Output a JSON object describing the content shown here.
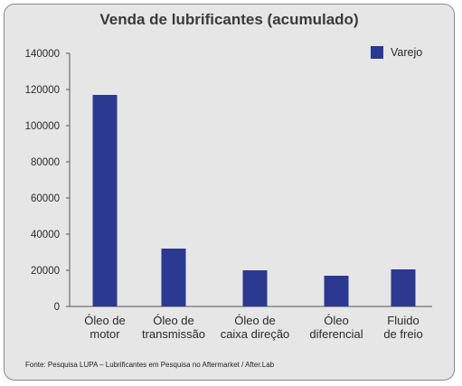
{
  "chart_data": {
    "type": "bar",
    "title": "Venda de lubrificantes (acumulado)",
    "categories": [
      [
        "Óleo de",
        "motor"
      ],
      [
        "Óleo de",
        "transmissão"
      ],
      [
        "Óleo de",
        "caixa direção"
      ],
      [
        "Óleo",
        "diferencial"
      ],
      [
        "Fluido",
        "de freio"
      ]
    ],
    "series": [
      {
        "name": "Varejo",
        "values": [
          117000,
          32000,
          20000,
          17000,
          20500
        ],
        "color": "#2b3990"
      }
    ],
    "yticks": [
      0,
      20000,
      40000,
      60000,
      80000,
      100000,
      120000,
      140000
    ],
    "ylim": [
      0,
      140000
    ],
    "xlabel": "",
    "ylabel": "",
    "grid": false,
    "legend": "top-right"
  },
  "source": "Fonte: Pesquisa LUPA – Lubrificantes em Pesquisa no Aftermarket / After.Lab",
  "colors": {
    "background": "#e6e6e6",
    "border": "#8a8a8a",
    "bar": "#2b3990",
    "text": "#3a3a3a"
  }
}
